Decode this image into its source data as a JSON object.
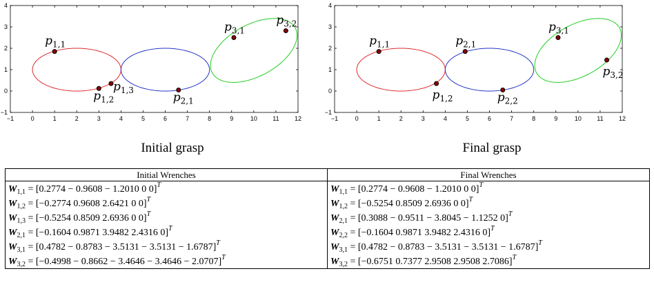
{
  "plots": [
    {
      "caption": "Initial grasp",
      "xlim": [
        -1,
        12
      ],
      "ylim": [
        -1,
        4
      ],
      "xticks": [
        "−1",
        "0",
        "1",
        "2",
        "3",
        "4",
        "5",
        "6",
        "7",
        "8",
        "9",
        "10",
        "11",
        "12"
      ],
      "yticks": [
        "−1",
        "0",
        "1",
        "2",
        "3",
        "4"
      ],
      "ellipses": [
        {
          "color": "#e0282c",
          "cx": 2,
          "cy": 1,
          "rx": 2,
          "ry": 1,
          "angle": 0
        },
        {
          "color": "#2233c4",
          "cx": 6,
          "cy": 1,
          "rx": 2,
          "ry": 1,
          "angle": 0
        },
        {
          "color": "#22cc22",
          "cx": 10,
          "cy": 1.9,
          "rx": 2.15,
          "ry": 1.2,
          "angle": 30
        }
      ],
      "points": [
        {
          "x": 1.0,
          "y": 1.85,
          "label": "p",
          "sub": "1,1"
        },
        {
          "x": 3.0,
          "y": 0.12,
          "label": "p",
          "sub": "1,2"
        },
        {
          "x": 3.55,
          "y": 0.35,
          "label": "p",
          "sub": "1,3"
        },
        {
          "x": 6.6,
          "y": 0.05,
          "label": "p",
          "sub": "2,1"
        },
        {
          "x": 9.1,
          "y": 2.5,
          "label": "p",
          "sub": "3,1"
        },
        {
          "x": 11.45,
          "y": 2.82,
          "label": "p",
          "sub": "3,2"
        }
      ]
    },
    {
      "caption": "Final grasp",
      "xlim": [
        -1,
        12
      ],
      "ylim": [
        -1,
        4
      ],
      "xticks": [
        "−1",
        "0",
        "1",
        "2",
        "3",
        "4",
        "5",
        "6",
        "7",
        "8",
        "9",
        "10",
        "11",
        "12"
      ],
      "yticks": [
        "−1",
        "0",
        "1",
        "2",
        "3",
        "4"
      ],
      "ellipses": [
        {
          "color": "#e0282c",
          "cx": 2,
          "cy": 1,
          "rx": 2,
          "ry": 1,
          "angle": 0
        },
        {
          "color": "#2233c4",
          "cx": 6,
          "cy": 1,
          "rx": 2,
          "ry": 1,
          "angle": 0
        },
        {
          "color": "#22cc22",
          "cx": 10,
          "cy": 1.9,
          "rx": 2.15,
          "ry": 1.2,
          "angle": 30
        }
      ],
      "points": [
        {
          "x": 1.0,
          "y": 1.85,
          "label": "p",
          "sub": "1,1"
        },
        {
          "x": 3.6,
          "y": 0.35,
          "label": "p",
          "sub": "1,2"
        },
        {
          "x": 4.9,
          "y": 1.85,
          "label": "p",
          "sub": "2,1"
        },
        {
          "x": 6.6,
          "y": 0.05,
          "label": "p",
          "sub": "2,2"
        },
        {
          "x": 9.1,
          "y": 2.5,
          "label": "p",
          "sub": "3,1"
        },
        {
          "x": 11.3,
          "y": 1.45,
          "label": "p",
          "sub": "3,2"
        }
      ]
    }
  ],
  "table": {
    "headers": [
      "Initial Wrenches",
      "Final Wrenches"
    ],
    "rows": [
      [
        {
          "sym": "W",
          "sub": "1,1",
          "vec": "[0.2774 − 0.9608 − 1.2010 0 0]",
          "sup": "T"
        },
        {
          "sym": "W",
          "sub": "1,1",
          "vec": "[0.2774 − 0.9608 − 1.2010 0 0]",
          "sup": "T"
        }
      ],
      [
        {
          "sym": "W",
          "sub": "1,2",
          "vec": "[−0.2774 0.9608 2.6421 0 0]",
          "sup": "T"
        },
        {
          "sym": "W",
          "sub": "1,2",
          "vec": "[−0.5254 0.8509 2.6936 0 0]",
          "sup": "T"
        }
      ],
      [
        {
          "sym": "W",
          "sub": "1,3",
          "vec": "[−0.5254 0.8509 2.6936 0 0]",
          "sup": "T"
        },
        {
          "sym": "W",
          "sub": "2,1",
          "vec": "[0.3088 − 0.9511 − 3.8045 − 1.1252 0]",
          "sup": "T"
        }
      ],
      [
        {
          "sym": "W",
          "sub": "2,1",
          "vec": "[−0.1604 0.9871 3.9482 2.4316 0]",
          "sup": "T"
        },
        {
          "sym": "W",
          "sub": "2,2",
          "vec": "[−0.1604 0.9871 3.9482 2.4316 0]",
          "sup": "T"
        }
      ],
      [
        {
          "sym": "W",
          "sub": "3,1",
          "vec": "[0.4782 − 0.8783 − 3.5131 − 3.5131 − 1.6787]",
          "sup": "T"
        },
        {
          "sym": "W",
          "sub": "3,1",
          "vec": "[0.4782 − 0.8783 − 3.5131 − 3.5131 − 1.6787]",
          "sup": "T"
        }
      ],
      [
        {
          "sym": "W",
          "sub": "3,2",
          "vec": "[−0.4998 − 0.8662 − 3.4646 − 3.4646 − 2.0707]",
          "sup": "T"
        },
        {
          "sym": "W",
          "sub": "3,2",
          "vec": "[−0.6751 0.7377 2.9508 2.9508 2.7086]",
          "sup": "T"
        }
      ]
    ]
  }
}
